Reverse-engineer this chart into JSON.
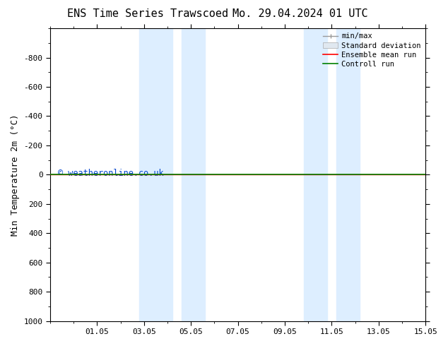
{
  "title": "ENS Time Series Trawscoed",
  "title2": "Mo. 29.04.2024 01 UTC",
  "ylabel": "Min Temperature 2m (°C)",
  "ylim_bottom": 1000,
  "ylim_top": -1000,
  "yticks": [
    -800,
    -600,
    -400,
    -200,
    0,
    200,
    400,
    600,
    800,
    1000
  ],
  "ytick_labels": [
    "-800",
    "-600",
    "-400",
    "-200",
    "0",
    "200",
    "400",
    "600",
    "800",
    "1000"
  ],
  "xlim_start": 0,
  "xlim_end": 16,
  "xtick_labels": [
    "01.05",
    "03.05",
    "05.05",
    "07.05",
    "09.05",
    "11.05",
    "13.05",
    "15.05"
  ],
  "xtick_positions": [
    2,
    4,
    6,
    8,
    10,
    12,
    14,
    16
  ],
  "shaded_regions": [
    [
      3.8,
      5.2
    ],
    [
      5.6,
      6.6
    ],
    [
      10.8,
      11.8
    ],
    [
      12.2,
      13.2
    ]
  ],
  "shaded_color": "#ddeeff",
  "control_run_color": "#008000",
  "ensemble_mean_color": "#ff0000",
  "watermark": "© weatheronline.co.uk",
  "watermark_color": "#0044cc",
  "background_color": "#ffffff",
  "legend_labels": [
    "min/max",
    "Standard deviation",
    "Ensemble mean run",
    "Controll run"
  ],
  "legend_colors": [
    "#999999",
    "#cccccc",
    "#ff0000",
    "#008000"
  ]
}
